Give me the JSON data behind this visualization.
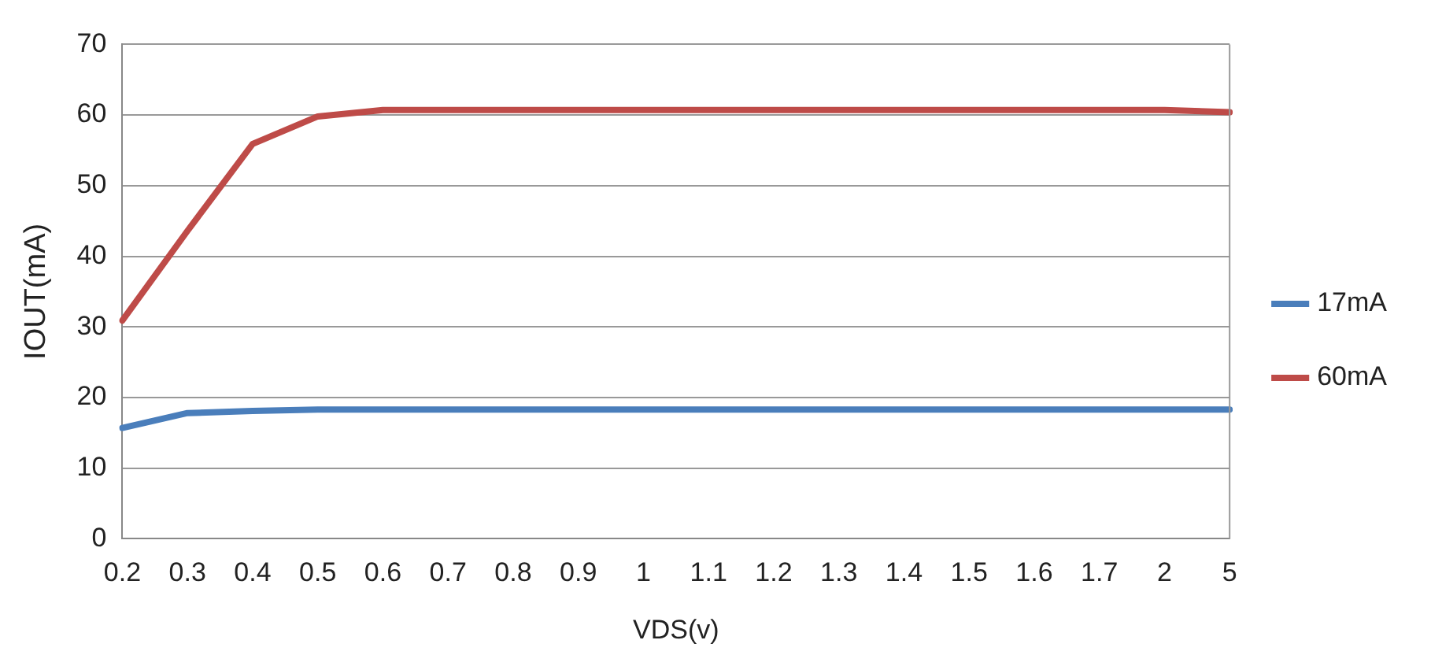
{
  "chart_data": {
    "type": "line",
    "xlabel": "VDS(v)",
    "ylabel": "IOUT(mA)",
    "categories": [
      "0.2",
      "0.3",
      "0.4",
      "0.5",
      "0.6",
      "0.7",
      "0.8",
      "0.9",
      "1",
      "1.1",
      "1.2",
      "1.3",
      "1.4",
      "1.5",
      "1.6",
      "1.7",
      "2",
      "5"
    ],
    "series": [
      {
        "name": "17mA",
        "color": "#4a7ebb",
        "values": [
          15.7,
          17.8,
          18.1,
          18.3,
          18.3,
          18.3,
          18.3,
          18.3,
          18.3,
          18.3,
          18.3,
          18.3,
          18.3,
          18.3,
          18.3,
          18.3,
          18.3,
          18.3
        ]
      },
      {
        "name": "60mA",
        "color": "#be4b48",
        "values": [
          30.9,
          43.6,
          55.9,
          59.8,
          60.7,
          60.7,
          60.7,
          60.7,
          60.7,
          60.7,
          60.7,
          60.7,
          60.7,
          60.7,
          60.7,
          60.7,
          60.7,
          60.4
        ]
      }
    ],
    "ylim": [
      0,
      70
    ],
    "yticks": [
      0,
      10,
      20,
      30,
      40,
      50,
      60,
      70
    ],
    "grid": "y",
    "legend": "right",
    "marker": "none",
    "line_style": "solid"
  }
}
